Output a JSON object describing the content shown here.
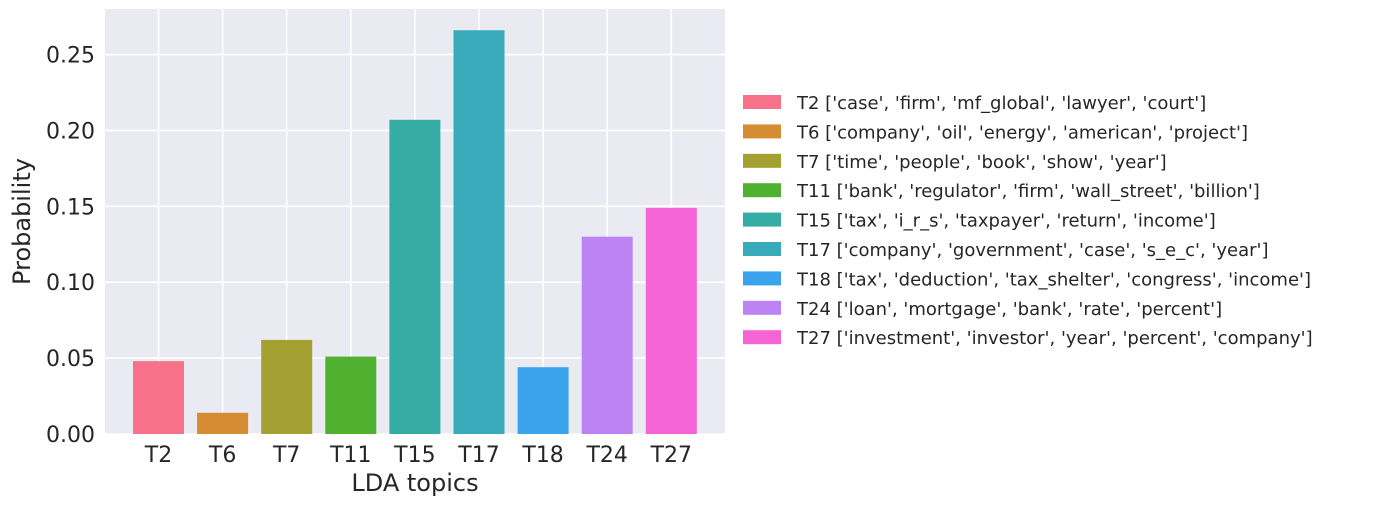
{
  "chart_data": {
    "type": "bar",
    "xlabel": "LDA topics",
    "ylabel": "Probability",
    "ylim": [
      0,
      0.28
    ],
    "yticks": [
      "0.00",
      "0.05",
      "0.10",
      "0.15",
      "0.20",
      "0.25"
    ],
    "grid": true,
    "legend_position": "right",
    "categories": [
      "T2",
      "T6",
      "T7",
      "T11",
      "T15",
      "T17",
      "T18",
      "T24",
      "T27"
    ],
    "values": [
      0.048,
      0.014,
      0.062,
      0.051,
      0.207,
      0.266,
      0.044,
      0.13,
      0.149
    ],
    "colors": [
      "#f77189",
      "#d58c32",
      "#a4a031",
      "#50b131",
      "#36ada4",
      "#38aaba",
      "#3ba3ec",
      "#bb83f4",
      "#f564d4"
    ],
    "legend": [
      "T2 ['case', 'firm', 'mf_global', 'lawyer', 'court']",
      "T6 ['company', 'oil', 'energy', 'american', 'project']",
      "T7 ['time', 'people', 'book', 'show', 'year']",
      "T11 ['bank', 'regulator', 'firm', 'wall_street', 'billion']",
      "T15 ['tax', 'i_r_s', 'taxpayer', 'return', 'income']",
      "T17 ['company', 'government', 'case', 's_e_c', 'year']",
      "T18 ['tax', 'deduction', 'tax_shelter', 'congress', 'income']",
      "T24 ['loan', 'mortgage', 'bank', 'rate', 'percent']",
      "T27 ['investment', 'investor', 'year', 'percent', 'company']"
    ],
    "plot_background": "#eaeaf2",
    "grid_color": "#ffffff"
  }
}
